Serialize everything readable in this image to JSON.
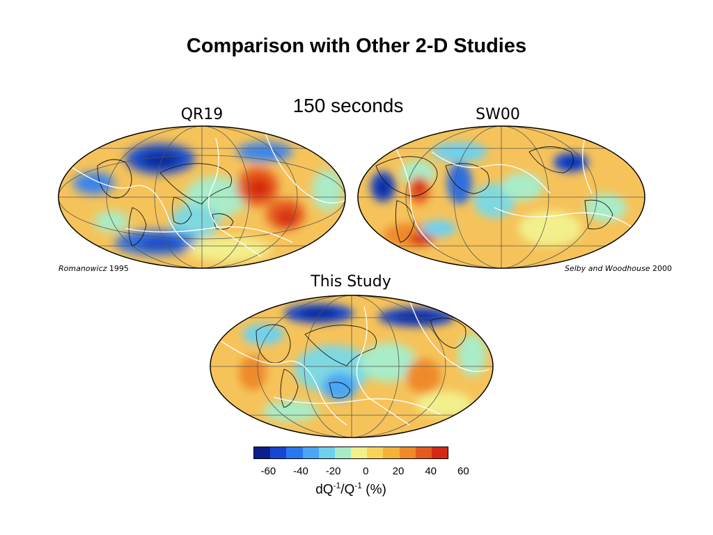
{
  "title": "Comparison with Other 2-D Studies",
  "subtitle": "150 seconds",
  "maps": [
    {
      "label": "QR19",
      "citation_author": "Romanowicz",
      "citation_year": "1995"
    },
    {
      "label": "SW00",
      "citation_author": "Selby and Woodhouse",
      "citation_year": "2000"
    },
    {
      "label": "This Study"
    }
  ],
  "colorbar": {
    "colors": [
      "#0a1e8c",
      "#1646d2",
      "#2a78f0",
      "#4aa6f5",
      "#6fd0ee",
      "#a6ecc8",
      "#f2f08c",
      "#f7d35a",
      "#f4b23a",
      "#ef8a2a",
      "#e55a1e",
      "#d42a14"
    ],
    "ticks": [
      "-60",
      "-40",
      "-20",
      "0",
      "20",
      "40",
      "60"
    ],
    "title_prefix": "dQ",
    "title_sup1": "-1",
    "title_mid": "/Q",
    "title_sup2": "-1",
    "title_suffix": " (%)"
  }
}
